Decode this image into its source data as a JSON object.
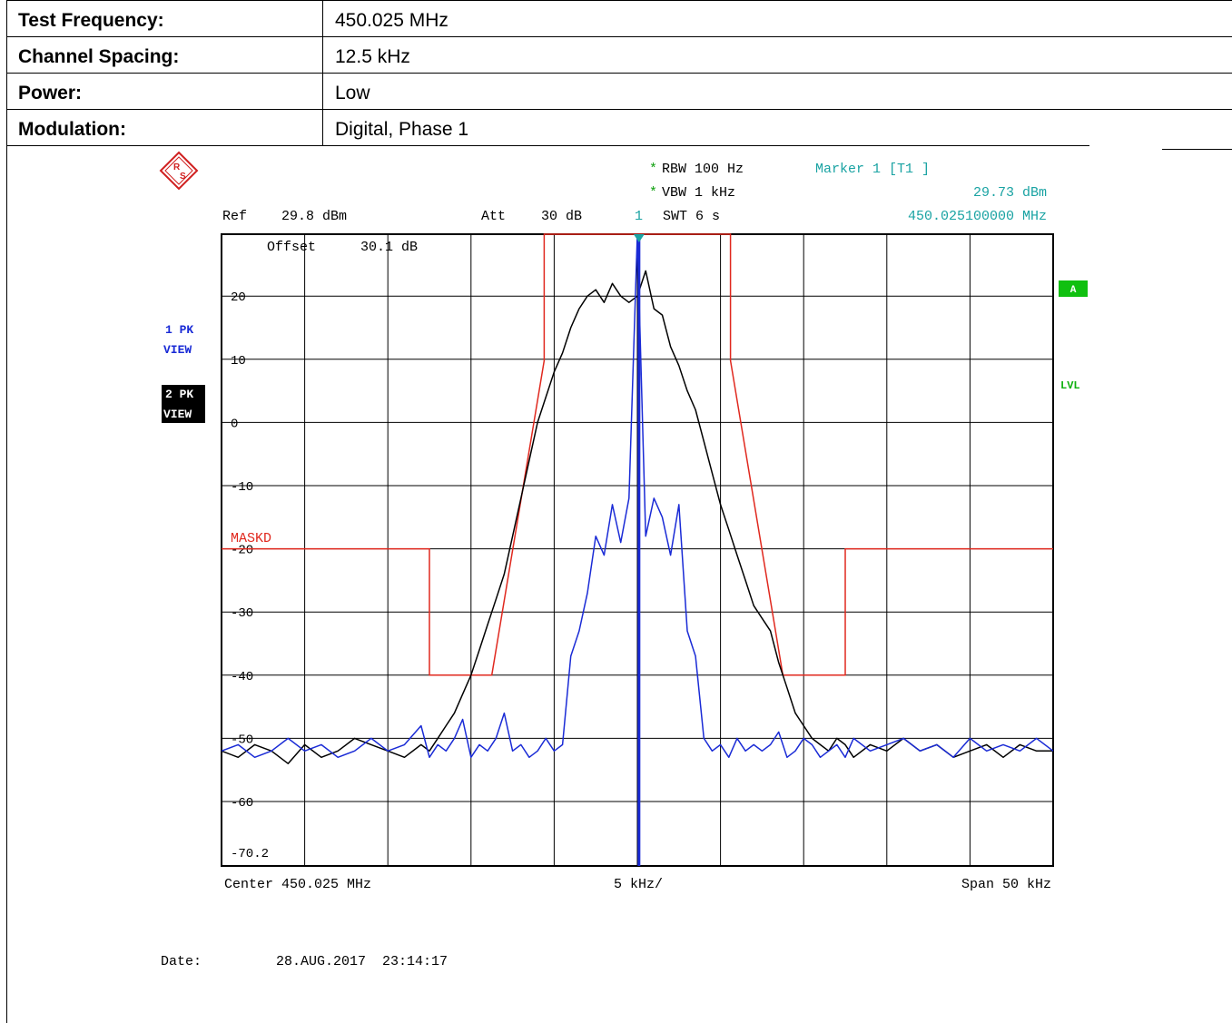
{
  "info_table": {
    "rows": [
      {
        "label": "Test Frequency:",
        "value": "450.025 MHz"
      },
      {
        "label": "Channel Spacing:",
        "value": "12.5 kHz"
      },
      {
        "label": "Power:",
        "value": "Low"
      },
      {
        "label": "Modulation:",
        "value": "Digital, Phase 1"
      }
    ]
  },
  "analyzer": {
    "rbw_label": "RBW 100 Hz",
    "vbw_label": "VBW 1 kHz",
    "star": "*",
    "marker_title": "Marker 1 [T1 ]",
    "marker_level": "29.73 dBm",
    "marker_freq": "450.025100000 MHz",
    "ref_label": "Ref",
    "ref_value": "29.8 dBm",
    "att_label": "Att",
    "att_value": "30 dB",
    "marker_num": "1",
    "swt_label": "SWT 6 s",
    "offset_label": "Offset",
    "offset_value": "30.1 dB",
    "trace1_badge": [
      "1 PK",
      "VIEW"
    ],
    "trace2_badge": [
      "2 PK",
      "VIEW"
    ],
    "a_badge": "A",
    "lvl_label": "LVL",
    "mask_label": "MASKD",
    "center_label": "Center 450.025 MHz",
    "div_label": "5 kHz/",
    "span_label": "Span 50 kHz",
    "date_label": "Date:",
    "date_value": "28.AUG.2017  23:14:17"
  },
  "chart_data": {
    "type": "line",
    "x_unit": "kHz offset from 450.025 MHz",
    "xlim": [
      -25,
      25
    ],
    "ylim": [
      -70.2,
      29.8
    ],
    "ytick_labels": [
      "20",
      "10",
      "0",
      "-10",
      "-20",
      "-30",
      "-40",
      "-50",
      "-60",
      "-70.2"
    ],
    "colors": {
      "trace1": "#1a2bd6",
      "trace2": "#000000",
      "mask": "#e0281e",
      "marker": "#1aa3a3",
      "grid": "#000000"
    },
    "marker": {
      "x": 0.1,
      "y": 29.73
    },
    "mask": {
      "x": [
        -25,
        -12.5,
        -12.5,
        -8.75,
        -5.6,
        -5.6,
        5.6,
        5.6,
        8.75,
        12.5,
        12.5,
        25
      ],
      "y": [
        -20,
        -20,
        -40,
        -40,
        9.8,
        29.8,
        29.8,
        9.8,
        -40,
        -40,
        -20,
        -20
      ]
    },
    "series": [
      {
        "x": [
          -25,
          -24,
          -23,
          -22,
          -21,
          -20,
          -19,
          -18,
          -17,
          -16,
          -15,
          -14,
          -13,
          -12.5,
          -12,
          -11.5,
          -11,
          -10.5,
          -10,
          -9.5,
          -9,
          -8.5,
          -8,
          -7.5,
          -7,
          -6.5,
          -6,
          -5.5,
          -5,
          -4.5,
          -4,
          -3.5,
          -3,
          -2.5,
          -2,
          -1.5,
          -1,
          -0.5,
          0,
          0.5,
          1,
          1.5,
          2,
          2.5,
          3,
          3.5,
          4,
          4.5,
          5,
          5.5,
          6,
          6.5,
          7,
          7.5,
          8,
          8.5,
          9,
          9.5,
          10,
          10.5,
          11,
          11.5,
          12,
          12.5,
          13,
          14,
          15,
          16,
          17,
          18,
          19,
          20,
          21,
          22,
          23,
          24,
          25
        ],
        "y": [
          -52,
          -51,
          -53,
          -52,
          -50,
          -52,
          -51,
          -53,
          -52,
          -50,
          -52,
          -51,
          -48,
          -53,
          -51,
          -52,
          -50,
          -47,
          -53,
          -51,
          -52,
          -50,
          -46,
          -52,
          -51,
          -53,
          -52,
          -50,
          -52,
          -51,
          -37,
          -33,
          -27,
          -18,
          -21,
          -13,
          -19,
          -12,
          29.73,
          -18,
          -12,
          -15,
          -21,
          -13,
          -33,
          -37,
          -50,
          -52,
          -51,
          -53,
          -50,
          -52,
          -51,
          -52,
          -51,
          -49,
          -53,
          -52,
          -50,
          -51,
          -53,
          -52,
          -51,
          -53,
          -50,
          -52,
          -51,
          -50,
          -52,
          -51,
          -53,
          -50,
          -52,
          -51,
          -52,
          -50,
          -52
        ],
        "color": "#1a2bd6"
      },
      {
        "x": [
          -25,
          -24,
          -23,
          -22,
          -21,
          -20,
          -19,
          -18,
          -17,
          -16,
          -15,
          -14,
          -13,
          -12.5,
          -12,
          -11.5,
          -11,
          -10.5,
          -10,
          -9.5,
          -9,
          -8.5,
          -8,
          -7.5,
          -7,
          -6.5,
          -6,
          -5.5,
          -5,
          -4.5,
          -4,
          -3.5,
          -3,
          -2.5,
          -2,
          -1.5,
          -1,
          -0.5,
          0,
          0.5,
          1,
          1.5,
          2,
          2.5,
          3,
          3.5,
          4,
          4.5,
          5,
          5.5,
          6,
          6.5,
          7,
          7.5,
          8,
          8.5,
          9,
          9.5,
          10,
          10.5,
          11,
          11.5,
          12,
          12.5,
          13,
          14,
          15,
          16,
          17,
          18,
          19,
          20,
          21,
          22,
          23,
          24,
          25
        ],
        "y": [
          -52,
          -53,
          -51,
          -52,
          -54,
          -51,
          -53,
          -52,
          -50,
          -51,
          -52,
          -53,
          -51,
          -52,
          -50,
          -48,
          -46,
          -43,
          -40,
          -36,
          -32,
          -28,
          -24,
          -18,
          -12,
          -6,
          0,
          4,
          8,
          11,
          15,
          18,
          20,
          21,
          19,
          22,
          20,
          19,
          20,
          24,
          18,
          17,
          12,
          9,
          5,
          2,
          -3,
          -8,
          -13,
          -17,
          -21,
          -25,
          -29,
          -31,
          -33,
          -38,
          -42,
          -46,
          -48,
          -50,
          -51,
          -52,
          -50,
          -51,
          -53,
          -51,
          -52,
          -50,
          -52,
          -51,
          -53,
          -52,
          -51,
          -53,
          -51,
          -52,
          -52
        ],
        "color": "#000000"
      }
    ]
  }
}
